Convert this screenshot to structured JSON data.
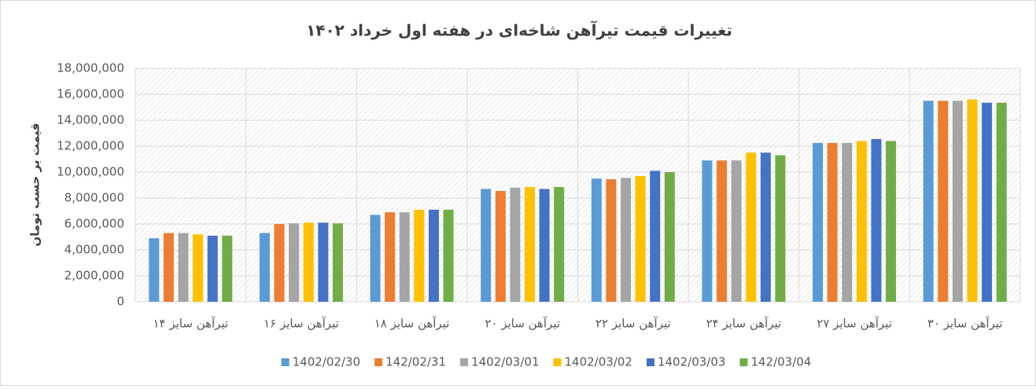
{
  "chart_data": {
    "type": "bar",
    "title": "تغییرات قیمت تیرآهن شاخه‌ای در هفته اول خرداد ۱۴۰۲",
    "y_label": "قیمت بر حسب تومان",
    "categories": [
      "تیرآهن سایز ۱۴",
      "تیرآهن سایز ۱۶",
      "تیرآهن سایز ۱۸",
      "تیرآهن سایز ۲۰",
      "تیرآهن سایز ۲۲",
      "تیرآهن سایز ۲۴",
      "تیرآهن سایز ۲۷",
      "تیرآهن سایز ۳۰"
    ],
    "series": [
      {
        "name": "1402/02/30",
        "color": "#5b9bd5",
        "values": [
          4900000,
          5300000,
          6700000,
          8700000,
          9500000,
          10900000,
          12250000,
          15500000
        ]
      },
      {
        "name": "142/02/31",
        "color": "#ed7d31",
        "values": [
          5300000,
          6000000,
          6900000,
          8550000,
          9450000,
          10900000,
          12250000,
          15500000
        ]
      },
      {
        "name": "1402/03/01",
        "color": "#a5a5a5",
        "values": [
          5300000,
          6050000,
          6900000,
          8800000,
          9550000,
          10900000,
          12250000,
          15500000
        ]
      },
      {
        "name": "1402/03/02",
        "color": "#ffc000",
        "values": [
          5200000,
          6100000,
          7100000,
          8850000,
          9700000,
          11500000,
          12400000,
          15600000
        ]
      },
      {
        "name": "1402/03/03",
        "color": "#4472c4",
        "values": [
          5100000,
          6100000,
          7100000,
          8700000,
          10100000,
          11500000,
          12550000,
          15350000
        ]
      },
      {
        "name": "142/03/04",
        "color": "#70ad47",
        "values": [
          5100000,
          6050000,
          7100000,
          8850000,
          10000000,
          11300000,
          12400000,
          15350000
        ]
      }
    ],
    "ylim": [
      0,
      18000000
    ],
    "yticks": [
      0,
      {
        "value": 2000000,
        "label": "2,000,000"
      },
      {
        "value": 4000000,
        "label": "4,000,000"
      },
      {
        "value": 6000000,
        "label": "6,000,000"
      },
      {
        "value": 8000000,
        "label": "8,000,000"
      },
      {
        "value": 10000000,
        "label": "10,000,000"
      },
      {
        "value": 12000000,
        "label": "12,000,000"
      },
      {
        "value": 14000000,
        "label": "14,000,000"
      },
      {
        "value": 16000000,
        "label": "16,000,000"
      },
      {
        "value": 18000000,
        "label": "18,000,000"
      }
    ],
    "grid": true,
    "legend": "bottom"
  }
}
